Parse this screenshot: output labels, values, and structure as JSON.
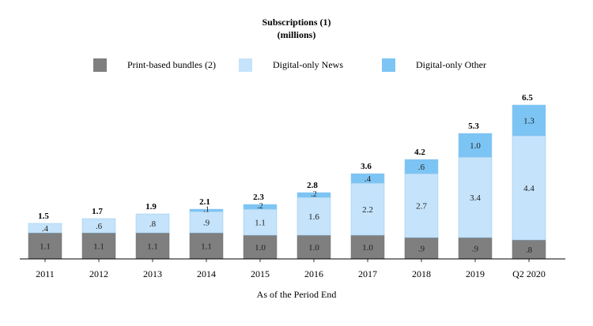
{
  "chart_data": {
    "type": "bar",
    "stacked": true,
    "title": "Subscriptions (1)",
    "subtitle": "(millions)",
    "xlabel": "As of the Period End",
    "ylabel": "",
    "categories": [
      "2011",
      "2012",
      "2013",
      "2014",
      "2015",
      "2016",
      "2017",
      "2018",
      "2019",
      "Q2 2020"
    ],
    "series": [
      {
        "name": "Print-based bundles (2)",
        "color": "#7f7f7f",
        "values": [
          1.1,
          1.1,
          1.1,
          1.1,
          1.0,
          1.0,
          1.0,
          0.9,
          0.9,
          0.8
        ],
        "labels": [
          "1.1",
          "1.1",
          "1.1",
          "1.1",
          "1.0",
          "1.0",
          "1.0",
          ".9",
          ".9",
          ".8"
        ]
      },
      {
        "name": "Digital-only News",
        "color": "#c5e3fa",
        "values": [
          0.4,
          0.6,
          0.8,
          0.9,
          1.1,
          1.6,
          2.2,
          2.7,
          3.4,
          4.4
        ],
        "labels": [
          ".4",
          ".6",
          ".8",
          ".9",
          "1.1",
          "1.6",
          "2.2",
          "2.7",
          "3.4",
          "4.4"
        ]
      },
      {
        "name": "Digital-only Other",
        "color": "#7cc4f4",
        "values": [
          0,
          0,
          0,
          0.1,
          0.2,
          0.2,
          0.4,
          0.6,
          1.0,
          1.3
        ],
        "labels": [
          "",
          "",
          "",
          ".1",
          ".2",
          ".2",
          ".4",
          ".6",
          "1.0",
          "1.3"
        ]
      }
    ],
    "totals": [
      "1.5",
      "1.7",
      "1.9",
      "2.1",
      "2.3",
      "2.8",
      "3.6",
      "4.2",
      "5.3",
      "6.5"
    ],
    "ylim": [
      0,
      6.5
    ],
    "grid": false,
    "legend_position": "top"
  }
}
